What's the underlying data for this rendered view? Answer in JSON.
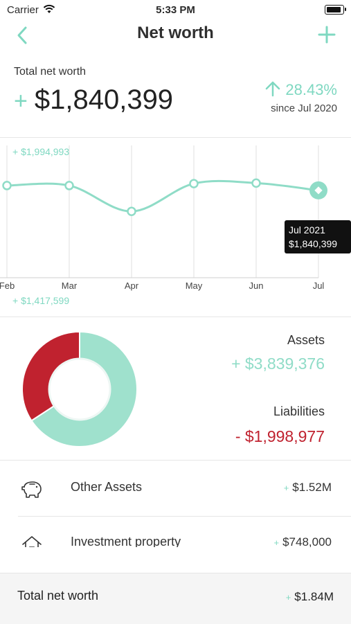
{
  "status_bar": {
    "carrier": "Carrier",
    "time": "5:33 PM"
  },
  "nav": {
    "title": "Net worth"
  },
  "summary": {
    "label": "Total net worth",
    "sign": "+",
    "value": "$1,840,399",
    "change_percent": "28.43%",
    "since": "since Jul 2020"
  },
  "chart_data": {
    "type": "line",
    "x": [
      "Feb",
      "Mar",
      "Apr",
      "May",
      "Jun",
      "Jul"
    ],
    "values": [
      1860000,
      1860000,
      1755000,
      1868000,
      1870000,
      1840399
    ],
    "max_label": "+ $1,994,993",
    "min_label": "+ $1,417,599",
    "ylim": [
      1417599,
      1994993
    ],
    "tooltip": {
      "date": "Jul 2021",
      "value": "$1,840,399"
    },
    "line_color": "#8fdcc7"
  },
  "breakdown": {
    "assets_label": "Assets",
    "assets_value": "+ $3,839,376",
    "liabilities_label": "Liabilities",
    "liabilities_value": "- $1,998,977",
    "assets_color": "#9fe1cd",
    "liabilities_color": "#c0222f",
    "assets_share": 0.658
  },
  "accounts": [
    {
      "icon": "piggy-bank-icon",
      "label": "Other Assets",
      "sign": "+",
      "value": "$1.52M"
    },
    {
      "icon": "house-icon",
      "label": "Investment property",
      "sign": "+",
      "value": "$748,000"
    }
  ],
  "footer": {
    "label": "Total net worth",
    "sign": "+",
    "value": "$1.84M"
  }
}
